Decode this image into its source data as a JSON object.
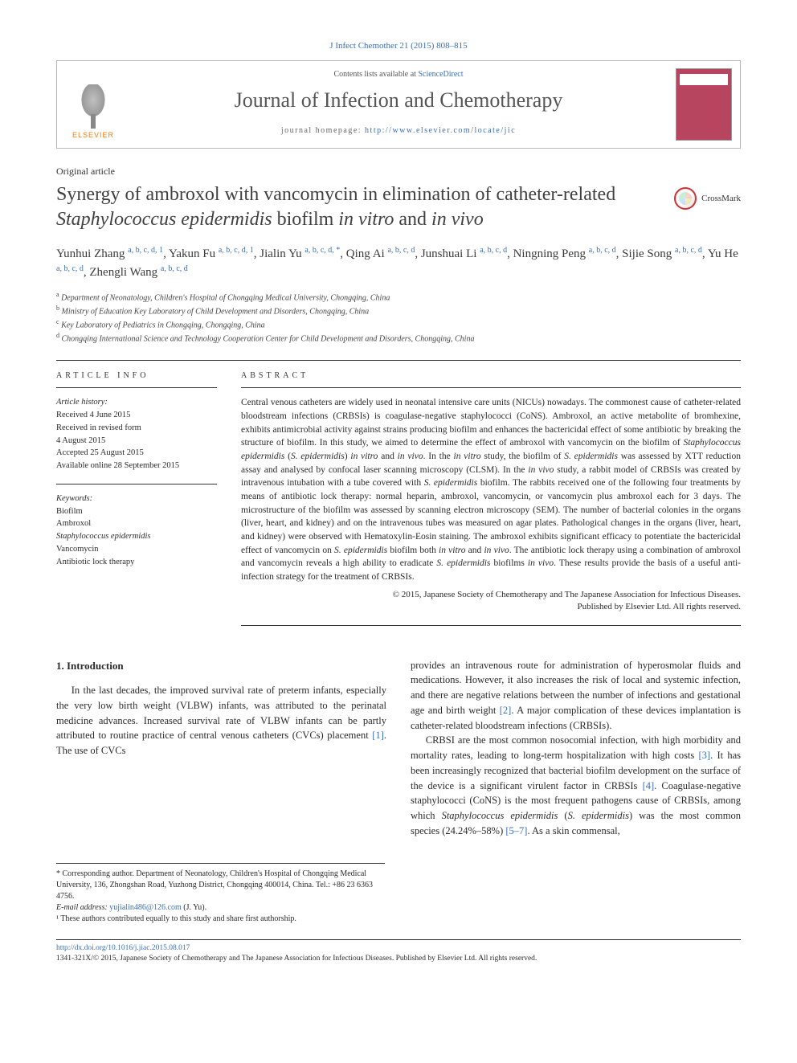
{
  "citation_top": "J Infect Chemother 21 (2015) 808–815",
  "header": {
    "contents_prefix": "Contents lists available at ",
    "contents_link": "ScienceDirect",
    "journal_name": "Journal of Infection and Chemotherapy",
    "homepage_prefix": "journal homepage: ",
    "homepage_url": "http://www.elsevier.com/locate/jic",
    "publisher_logo_text": "ELSEVIER"
  },
  "crossmark_label": "CrossMark",
  "article_type": "Original article",
  "title_parts": {
    "p1": "Synergy of ambroxol with vancomycin in elimination of catheter-related ",
    "p2": "Staphylococcus epidermidis",
    "p3": " biofilm ",
    "p4": "in vitro",
    "p5": " and ",
    "p6": "in vivo"
  },
  "authors": [
    {
      "name": "Yunhui Zhang",
      "sup": "a, b, c, d, 1"
    },
    {
      "name": "Yakun Fu",
      "sup": "a, b, c, d, 1"
    },
    {
      "name": "Jialin Yu",
      "sup": "a, b, c, d, *"
    },
    {
      "name": "Qing Ai",
      "sup": "a, b, c, d"
    },
    {
      "name": "Junshuai Li",
      "sup": "a, b, c, d"
    },
    {
      "name": "Ningning Peng",
      "sup": "a, b, c, d"
    },
    {
      "name": "Sijie Song",
      "sup": "a, b, c, d"
    },
    {
      "name": "Yu He",
      "sup": "a, b, c, d"
    },
    {
      "name": "Zhengli Wang",
      "sup": "a, b, c, d"
    }
  ],
  "affiliations": [
    {
      "sup": "a",
      "text": "Department of Neonatology, Children's Hospital of Chongqing Medical University, Chongqing, China"
    },
    {
      "sup": "b",
      "text": "Ministry of Education Key Laboratory of Child Development and Disorders, Chongqing, China"
    },
    {
      "sup": "c",
      "text": "Key Laboratory of Pediatrics in Chongqing, Chongqing, China"
    },
    {
      "sup": "d",
      "text": "Chongqing International Science and Technology Cooperation Center for Child Development and Disorders, Chongqing, China"
    }
  ],
  "article_info": {
    "label": "ARTICLE INFO",
    "history_hdr": "Article history:",
    "history": [
      "Received 4 June 2015",
      "Received in revised form",
      "4 August 2015",
      "Accepted 25 August 2015",
      "Available online 28 September 2015"
    ],
    "keywords_hdr": "Keywords:",
    "keywords": [
      "Biofilm",
      "Ambroxol",
      "Staphylococcus epidermidis",
      "Vancomycin",
      "Antibiotic lock therapy"
    ]
  },
  "abstract": {
    "label": "ABSTRACT",
    "text_parts": [
      "Central venous catheters are widely used in neonatal intensive care units (NICUs) nowadays. The commonest cause of catheter-related bloodstream infections (CRBSIs) is coagulase-negative staphylococci (CoNS). Ambroxol, an active metabolite of bromhexine, exhibits antimicrobial activity against strains producing biofilm and enhances the bactericidal effect of some antibiotic by breaking the structure of biofilm. In this study, we aimed to determine the effect of ambroxol with vancomycin on the biofilm of ",
      "Staphylococcus epidermidis",
      " (",
      "S. epidermidis",
      ") ",
      "in vitro",
      " and ",
      "in vivo",
      ". In the ",
      "in vitro",
      " study, the biofilm of ",
      "S. epidermidis",
      " was assessed by XTT reduction assay and analysed by confocal laser scanning microscopy (CLSM). In the ",
      "in vivo",
      " study, a rabbit model of CRBSIs was created by intravenous intubation with a tube covered with ",
      "S. epidermidis",
      " biofilm. The rabbits received one of the following four treatments by means of antibiotic lock therapy: normal heparin, ambroxol, vancomycin, or vancomycin plus ambroxol each for 3 days. The microstructure of the biofilm was assessed by scanning electron microscopy (SEM). The number of bacterial colonies in the organs (liver, heart, and kidney) and on the intravenous tubes was measured on agar plates. Pathological changes in the organs (liver, heart, and kidney) were observed with Hematoxylin-Eosin staining. The ambroxol exhibits significant efficacy to potentiate the bactericidal effect of vancomycin on ",
      "S. epidermidis",
      " biofilm both ",
      "in vitro",
      " and ",
      "in vivo",
      ". The antibiotic lock therapy using a combination of ambroxol and vancomycin reveals a high ability to eradicate ",
      "S. epidermidis",
      " biofilms ",
      "in vivo",
      ". These results provide the basis of a useful anti-infection strategy for the treatment of CRBSIs."
    ],
    "italic_indices": [
      1,
      3,
      5,
      7,
      9,
      11,
      13,
      15,
      17,
      19,
      21,
      23,
      25
    ],
    "copyright1": "© 2015, Japanese Society of Chemotherapy and The Japanese Association for Infectious Diseases.",
    "copyright2": "Published by Elsevier Ltd. All rights reserved."
  },
  "body": {
    "section_heading": "1. Introduction",
    "col1_p1a": "In the last decades, the improved survival rate of preterm infants, especially the very low birth weight (VLBW) infants, was attributed to the perinatal medicine advances. Increased survival rate of VLBW infants can be partly attributed to routine practice of central venous catheters (CVCs) placement ",
    "col1_ref1": "[1]",
    "col1_p1b": ". The use of CVCs",
    "col2_p1a": "provides an intravenous route for administration of hyperosmolar fluids and medications. However, it also increases the risk of local and systemic infection, and there are negative relations between the number of infections and gestational age and birth weight ",
    "col2_ref2": "[2]",
    "col2_p1b": ". A major complication of these devices implantation is catheter-related bloodstream infections (CRBSIs).",
    "col2_p2a": "CRBSI are the most common nosocomial infection, with high morbidity and mortality rates, leading to long-term hospitalization with high costs ",
    "col2_ref3": "[3]",
    "col2_p2b": ". It has been increasingly recognized that bacterial biofilm development on the surface of the device is a significant virulent factor in CRBSIs ",
    "col2_ref4": "[4]",
    "col2_p2c": ". Coagulase-negative staphylococci (CoNS) is the most frequent pathogens cause of CRBSIs, among which ",
    "col2_ital1": "Staphylococcus epidermidis",
    "col2_p2d": " (",
    "col2_ital2": "S. epidermidis",
    "col2_p2e": ") was the most common species (24.24%–58%) ",
    "col2_ref5": "[5–7]",
    "col2_p2f": ". As a skin commensal,"
  },
  "footnotes": {
    "corr": "* Corresponding author. Department of Neonatology, Children's Hospital of Chongqing Medical University, 136, Zhongshan Road, Yuzhong District, Chongqing 400014, China. Tel.: +86 23 6363 4756.",
    "email_label": "E-mail address: ",
    "email": "yujialin486@126.com",
    "email_suffix": " (J. Yu).",
    "note1": "¹ These authors contributed equally to this study and share first authorship."
  },
  "bottom": {
    "doi": "http://dx.doi.org/10.1016/j.jiac.2015.08.017",
    "issn_line": "1341-321X/© 2015, Japanese Society of Chemotherapy and The Japanese Association for Infectious Diseases. Published by Elsevier Ltd. All rights reserved."
  },
  "colors": {
    "link": "#3a6fb5",
    "text": "#2a2a2a",
    "gray": "#555555",
    "orange": "#ff7a00",
    "cover": "#b84560"
  }
}
